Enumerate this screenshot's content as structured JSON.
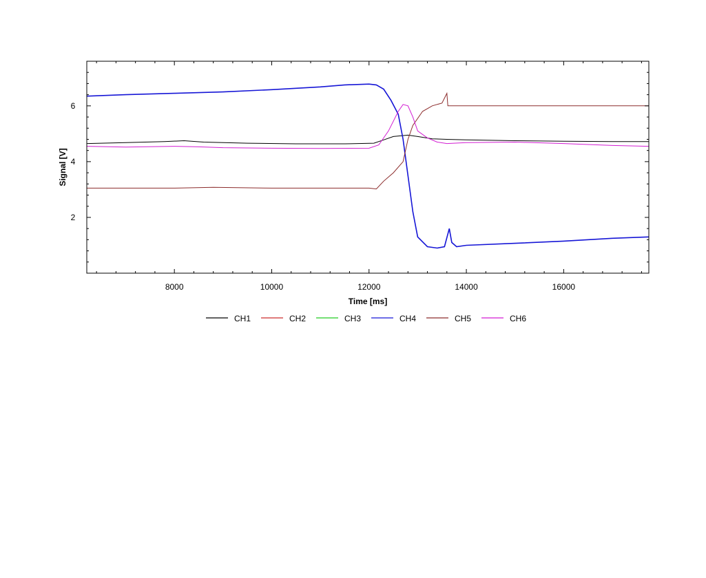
{
  "chart_data": {
    "type": "line",
    "title": "",
    "xlabel": "Time [ms]",
    "ylabel": "Signal [V]",
    "xlim": [
      6200,
      17750
    ],
    "ylim": [
      0,
      7.6
    ],
    "xticks": [
      8000,
      10000,
      12000,
      14000,
      16000
    ],
    "yticks": [
      2,
      4,
      6
    ],
    "grid": false,
    "legend_position": "bottom",
    "series": [
      {
        "name": "CH1",
        "color": "#000000",
        "x": [
          6200,
          7000,
          7800,
          8200,
          8600,
          9500,
          10500,
          11500,
          12100,
          12300,
          12500,
          12800,
          13000,
          13300,
          13600,
          14000,
          15000,
          16000,
          17000,
          17750
        ],
        "y": [
          4.65,
          4.68,
          4.72,
          4.75,
          4.7,
          4.66,
          4.64,
          4.64,
          4.66,
          4.78,
          4.9,
          4.95,
          4.9,
          4.82,
          4.8,
          4.78,
          4.75,
          4.73,
          4.72,
          4.72
        ]
      },
      {
        "name": "CH2",
        "color": "#cc2a2a",
        "x": [],
        "y": []
      },
      {
        "name": "CH3",
        "color": "#22cc22",
        "x": [],
        "y": []
      },
      {
        "name": "CH4",
        "color": "#1515d6",
        "x": [
          6200,
          7000,
          8000,
          9000,
          10000,
          11000,
          11500,
          12000,
          12150,
          12300,
          12450,
          12600,
          12700,
          12800,
          12900,
          13000,
          13200,
          13400,
          13550,
          13650,
          13700,
          13800,
          14000,
          15000,
          16000,
          17000,
          17750
        ],
        "y": [
          6.35,
          6.4,
          6.45,
          6.5,
          6.58,
          6.68,
          6.75,
          6.78,
          6.75,
          6.6,
          6.2,
          5.7,
          4.8,
          3.5,
          2.2,
          1.3,
          0.95,
          0.9,
          0.95,
          1.6,
          1.1,
          0.95,
          1.0,
          1.07,
          1.15,
          1.25,
          1.3
        ]
      },
      {
        "name": "CH5",
        "color": "#8b2a2a",
        "x": [
          6200,
          8000,
          8800,
          10000,
          12000,
          12150,
          12300,
          12500,
          12700,
          12800,
          12900,
          13100,
          13300,
          13500,
          13600,
          13620,
          13700,
          14500,
          15500,
          16500,
          17750
        ],
        "y": [
          3.05,
          3.05,
          3.08,
          3.05,
          3.05,
          3.02,
          3.3,
          3.6,
          4.0,
          4.8,
          5.3,
          5.8,
          6.0,
          6.1,
          6.45,
          6.0,
          6.0,
          6.0,
          6.0,
          6.0,
          6.0
        ]
      },
      {
        "name": "CH6",
        "color": "#d21bd2",
        "x": [
          6200,
          7000,
          8000,
          8500,
          9000,
          10000,
          11000,
          12000,
          12200,
          12400,
          12600,
          12700,
          12800,
          12900,
          13000,
          13200,
          13400,
          13600,
          14000,
          15000,
          16000,
          17000,
          17750
        ],
        "y": [
          4.55,
          4.52,
          4.55,
          4.53,
          4.5,
          4.48,
          4.47,
          4.48,
          4.6,
          5.1,
          5.8,
          6.05,
          6.0,
          5.6,
          5.1,
          4.85,
          4.7,
          4.65,
          4.68,
          4.7,
          4.65,
          4.58,
          4.55
        ]
      }
    ]
  }
}
